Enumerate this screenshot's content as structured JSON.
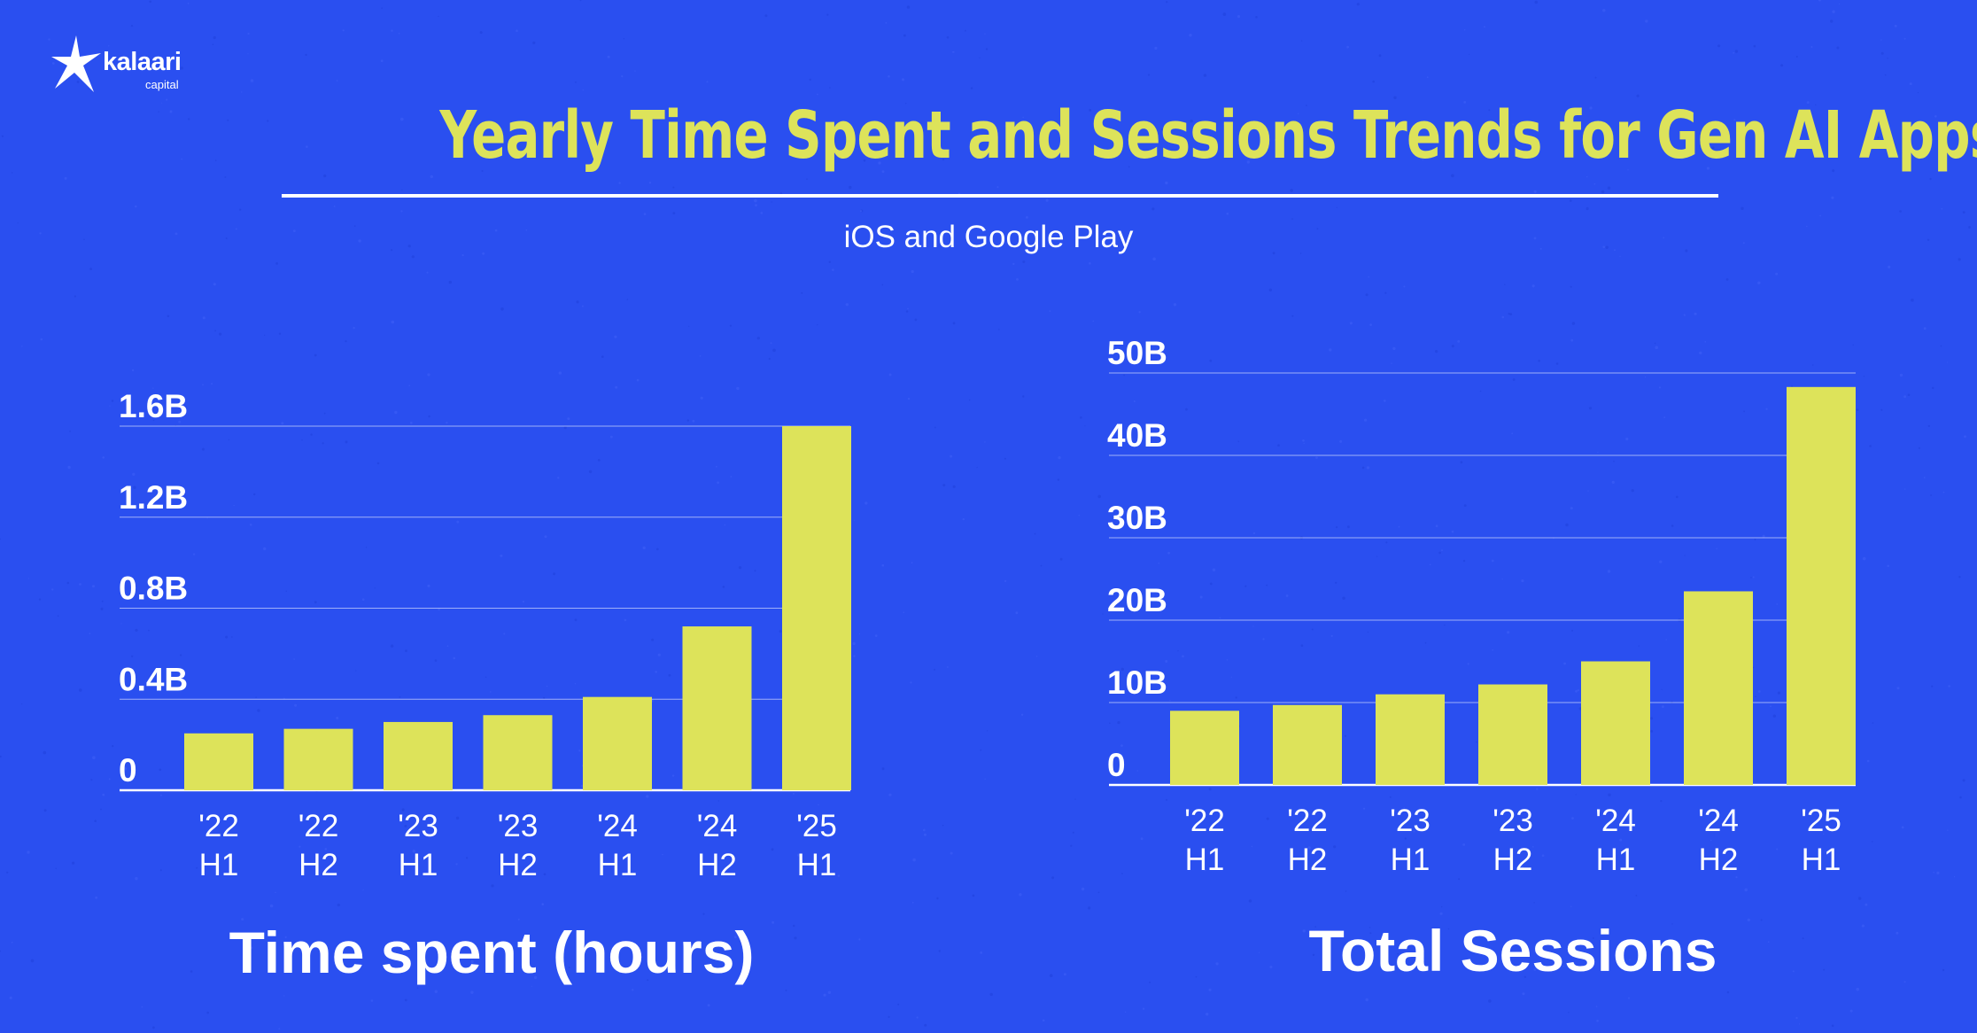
{
  "header": {
    "logo_text": "kalaari",
    "logo_subtext": "capital",
    "title": "Yearly Time Spent and Sessions Trends for Gen AI Apps",
    "subtitle": "iOS and Google Play"
  },
  "colors": {
    "background": "#2a4ff0",
    "bar": "#dde35a",
    "title": "#dde35a",
    "text": "#ffffff"
  },
  "chart_data": [
    {
      "type": "bar",
      "title": "Time spent (hours)",
      "categories": [
        [
          "'22",
          "H1"
        ],
        [
          "'22",
          "H2"
        ],
        [
          "'23",
          "H1"
        ],
        [
          "'23",
          "H2"
        ],
        [
          "'24",
          "H1"
        ],
        [
          "'24",
          "H2"
        ],
        [
          "'25",
          "H1"
        ]
      ],
      "values": [
        0.25,
        0.27,
        0.3,
        0.33,
        0.41,
        0.72,
        1.6
      ],
      "unit": "B",
      "yticks": [
        0,
        0.4,
        0.8,
        1.2,
        1.6
      ],
      "ytick_labels": [
        "0",
        "0.4B",
        "0.8B",
        "1.2B",
        "1.6B"
      ],
      "ylim": [
        0,
        1.6
      ],
      "grid": true
    },
    {
      "type": "bar",
      "title": "Total Sessions",
      "categories": [
        [
          "'22",
          "H1"
        ],
        [
          "'22",
          "H2"
        ],
        [
          "'23",
          "H1"
        ],
        [
          "'23",
          "H2"
        ],
        [
          "'24",
          "H1"
        ],
        [
          "'24",
          "H2"
        ],
        [
          "'25",
          "H1"
        ]
      ],
      "values": [
        9,
        9.7,
        11,
        12.2,
        15,
        23.5,
        48.3
      ],
      "unit": "B",
      "yticks": [
        0,
        10,
        20,
        30,
        40,
        50
      ],
      "ytick_labels": [
        "0",
        "10B",
        "20B",
        "30B",
        "40B",
        "50B"
      ],
      "ylim": [
        0,
        50
      ],
      "grid": true
    }
  ]
}
